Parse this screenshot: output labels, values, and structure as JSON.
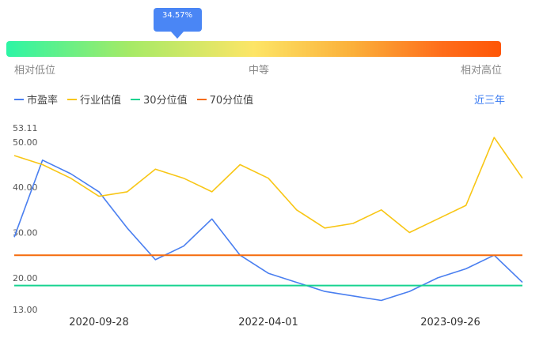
{
  "gauge": {
    "tooltip_value": "34.57%",
    "position_fraction": 0.3457,
    "labels": {
      "low": "相对低位",
      "mid": "中等",
      "high": "相对高位"
    }
  },
  "legend": {
    "items": [
      {
        "label": "市盈率",
        "color": "#4a7ff0"
      },
      {
        "label": "行业估值",
        "color": "#f8c615"
      },
      {
        "label": "30分位值",
        "color": "#17d390"
      },
      {
        "label": "70分位值",
        "color": "#f56b0c"
      }
    ],
    "period": "近三年"
  },
  "chart_data": {
    "type": "line",
    "y_ticks": [
      "53.11",
      "50.00",
      "40.00",
      "30.00",
      "20.00",
      "13.00"
    ],
    "x_ticks": [
      "2020-09-28",
      "2022-04-01",
      "2023-09-26"
    ],
    "ylim": [
      13.0,
      53.11
    ],
    "x": [
      "2020-01",
      "2020-04",
      "2020-07",
      "2020-10",
      "2021-01",
      "2021-04",
      "2021-07",
      "2021-10",
      "2022-01",
      "2022-04",
      "2022-07",
      "2022-10",
      "2023-01",
      "2023-04",
      "2023-07",
      "2023-10",
      "2024-01",
      "2024-04",
      "2024-06"
    ],
    "series": [
      {
        "name": "市盈率",
        "color": "#4a7ff0",
        "values": [
          29,
          46,
          43,
          39,
          31,
          24,
          27,
          33,
          25,
          21,
          19,
          17,
          16,
          15,
          17,
          20,
          22,
          25,
          19
        ]
      },
      {
        "name": "行业估值",
        "color": "#f8c615",
        "values": [
          47,
          45,
          42,
          38,
          39,
          44,
          42,
          39,
          45,
          42,
          35,
          31,
          32,
          35,
          30,
          33,
          36,
          51,
          42
        ]
      },
      {
        "name": "30分位值",
        "color": "#17d390",
        "values": [
          18.3,
          18.3,
          18.3,
          18.3,
          18.3,
          18.3,
          18.3,
          18.3,
          18.3,
          18.3,
          18.3,
          18.3,
          18.3,
          18.3,
          18.3,
          18.3,
          18.3,
          18.3,
          18.3
        ]
      },
      {
        "name": "70分位值",
        "color": "#f56b0c",
        "values": [
          25.0,
          25.0,
          25.0,
          25.0,
          25.0,
          25.0,
          25.0,
          25.0,
          25.0,
          25.0,
          25.0,
          25.0,
          25.0,
          25.0,
          25.0,
          25.0,
          25.0,
          25.0,
          25.0
        ]
      }
    ]
  }
}
